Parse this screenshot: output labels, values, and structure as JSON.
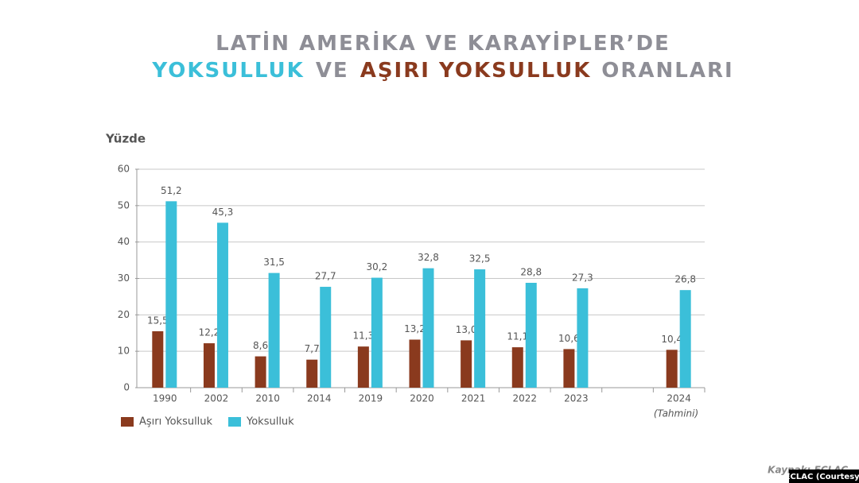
{
  "chart_data": {
    "type": "bar",
    "title_lines": [
      [
        {
          "text": "LATİN AMERİKA VE KARAYİPLER’DE",
          "color": "#8e8e96"
        }
      ],
      [
        {
          "text": "YOKSULLUK",
          "color": "#3bbfd9"
        },
        {
          "text": "VE",
          "color": "#8e8e96"
        },
        {
          "text": "AŞIRI YOKSULLUK",
          "color": "#8a3a1e"
        },
        {
          "text": "ORANLARI",
          "color": "#8e8e96"
        }
      ]
    ],
    "y_label": "Yüzde",
    "categories": [
      "1990",
      "2002",
      "2010",
      "2014",
      "2019",
      "2020",
      "2021",
      "2022",
      "2023",
      null,
      "2024"
    ],
    "annotation": "(Tahmini)",
    "series": [
      {
        "name": "Aşırı Yoksulluk",
        "color": "#8a3a1e",
        "values": [
          15.5,
          12.2,
          8.6,
          7.7,
          11.3,
          13.2,
          13.0,
          11.1,
          10.6,
          null,
          10.4
        ],
        "value_labels": [
          "15,5",
          "12,2",
          "8,6",
          "7,7",
          "11,3",
          "13,2",
          "13,0",
          "11,1",
          "10,6",
          null,
          "10,4"
        ]
      },
      {
        "name": "Yoksulluk",
        "color": "#3bbfd9",
        "values": [
          51.2,
          45.3,
          31.5,
          27.7,
          30.2,
          32.8,
          32.5,
          28.8,
          27.3,
          null,
          26.8
        ],
        "value_labels": [
          "51,2",
          "45,3",
          "31,5",
          "27,7",
          "30,2",
          "32,8",
          "32,5",
          "28,8",
          "27,3",
          null,
          "26,8"
        ]
      }
    ],
    "ylim": [
      0,
      60
    ],
    "yticks": [
      0,
      10,
      20,
      30,
      40,
      50,
      60
    ],
    "grid": true,
    "source": "Kaynak: ECLAC",
    "credit": "ECLAC (Courtesy)"
  }
}
